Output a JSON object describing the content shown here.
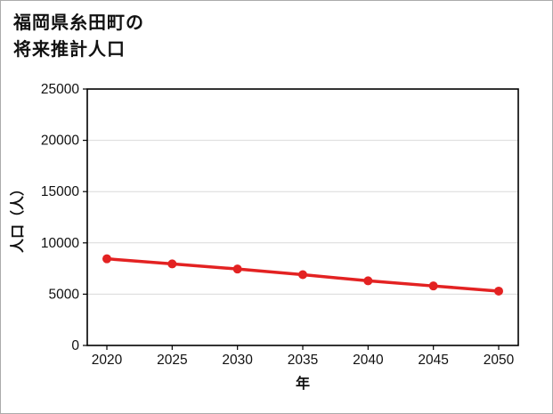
{
  "title": {
    "line1": "福岡県糸田町の",
    "line2": "将来推計人口"
  },
  "chart_data": {
    "type": "line",
    "title": "福岡県糸田町の将来推計人口",
    "xlabel": "年",
    "ylabel": "人口（人）",
    "x": [
      2020,
      2025,
      2030,
      2035,
      2040,
      2045,
      2050
    ],
    "values": [
      8450,
      7950,
      7450,
      6900,
      6300,
      5800,
      5300
    ],
    "series_name": "将来推計人口",
    "xticks": [
      "2020",
      "2025",
      "2030",
      "2035",
      "2040",
      "2045",
      "2050"
    ],
    "yticks": [
      0,
      5000,
      10000,
      15000,
      20000,
      25000
    ],
    "xlim": [
      2018.5,
      2051.5
    ],
    "ylim": [
      0,
      25000
    ],
    "grid": true,
    "legend": "none",
    "line_color": "#e32222",
    "marker": "circle",
    "grid_color": "#d9d9d9",
    "axis_color": "#000000"
  }
}
